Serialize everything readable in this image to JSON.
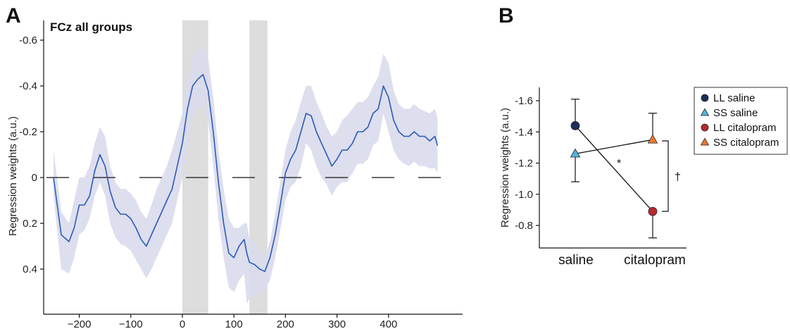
{
  "panels": {
    "A": {
      "letter": "A",
      "title": "FCz all groups",
      "ylabel": "Regression weights (a.u.)",
      "yticks": [
        "-0.6",
        "-0.4",
        "-0.2",
        "0",
        "0.2",
        "0.4"
      ],
      "xticks": [
        "−200",
        "−100",
        "0",
        "100",
        "200",
        "300",
        "400"
      ]
    },
    "B": {
      "letter": "B",
      "ylabel": "Regression weights (a.u.)",
      "yticks": [
        "-1.6",
        "-1.4",
        "-1.2",
        "-1.0",
        "-0.8"
      ],
      "categories": [
        "saline",
        "citalopram"
      ],
      "significance": {
        "within": "*",
        "between": "†"
      }
    }
  },
  "colors": {
    "line": "#2a5bb5",
    "band": "#d9daec",
    "shade": "#dcdddc",
    "ll_saline": "#1c2e57",
    "ss_saline": "#4fb3df",
    "ll_citalopram": "#b52a2f",
    "ss_citalopram": "#ec7a2e"
  },
  "chart_data": [
    {
      "type": "line",
      "title": "FCz all groups",
      "ylabel": "Regression weights (a.u.)",
      "xlabel": "",
      "xlim": [
        -250,
        495
      ],
      "ylim": [
        0.6,
        -0.6
      ],
      "y_axis_inverted": true,
      "grid": false,
      "zero_line": "dashed",
      "shaded_windows": [
        [
          0,
          50
        ],
        [
          130,
          165
        ]
      ],
      "series": [
        {
          "x": [
            -250,
            -235,
            -220,
            -210,
            -200,
            -190,
            -180,
            -170,
            -160,
            -150,
            -140,
            -130,
            -120,
            -110,
            -100,
            -90,
            -80,
            -70,
            -60,
            -50,
            -40,
            -30,
            -20,
            -10,
            0,
            10,
            20,
            30,
            40,
            50,
            60,
            70,
            80,
            90,
            100,
            110,
            120,
            125,
            130,
            140,
            150,
            160,
            170,
            180,
            190,
            200,
            210,
            220,
            230,
            240,
            250,
            260,
            270,
            280,
            290,
            300,
            310,
            320,
            330,
            340,
            350,
            360,
            370,
            380,
            390,
            400,
            410,
            420,
            430,
            440,
            450,
            460,
            470,
            480,
            490,
            495
          ],
          "y": [
            0,
            0.25,
            0.28,
            0.22,
            0.12,
            0.12,
            0.08,
            -0.03,
            -0.1,
            -0.05,
            0.06,
            0.13,
            0.16,
            0.16,
            0.18,
            0.22,
            0.27,
            0.3,
            0.25,
            0.2,
            0.15,
            0.1,
            0.05,
            -0.05,
            -0.15,
            -0.3,
            -0.4,
            -0.43,
            -0.45,
            -0.38,
            -0.2,
            0.02,
            0.2,
            0.33,
            0.35,
            0.3,
            0.27,
            0.33,
            0.37,
            0.38,
            0.4,
            0.41,
            0.35,
            0.25,
            0.12,
            -0.02,
            -0.08,
            -0.12,
            -0.2,
            -0.28,
            -0.27,
            -0.2,
            -0.15,
            -0.1,
            -0.05,
            -0.08,
            -0.12,
            -0.12,
            -0.15,
            -0.2,
            -0.2,
            -0.22,
            -0.28,
            -0.3,
            -0.4,
            -0.35,
            -0.25,
            -0.2,
            -0.18,
            -0.18,
            -0.2,
            -0.18,
            -0.18,
            -0.16,
            -0.18,
            -0.14
          ],
          "ci_lower": [
            -0.12,
            0.15,
            0.2,
            0.1,
            0,
            0,
            -0.05,
            -0.15,
            -0.22,
            -0.18,
            -0.05,
            0.02,
            0.05,
            0.05,
            0.07,
            0.1,
            0.15,
            0.18,
            0.12,
            0.05,
            0,
            -0.05,
            -0.12,
            -0.2,
            -0.28,
            -0.42,
            -0.52,
            -0.55,
            -0.57,
            -0.52,
            -0.35,
            -0.12,
            0.05,
            0.18,
            0.22,
            0.22,
            0.2,
            0.2,
            0.27,
            0.28,
            0.32,
            0.35,
            0.28,
            0.16,
            0.02,
            -0.12,
            -0.2,
            -0.25,
            -0.33,
            -0.4,
            -0.4,
            -0.33,
            -0.28,
            -0.22,
            -0.18,
            -0.2,
            -0.25,
            -0.27,
            -0.3,
            -0.33,
            -0.33,
            -0.35,
            -0.4,
            -0.44,
            -0.54,
            -0.5,
            -0.38,
            -0.32,
            -0.3,
            -0.3,
            -0.32,
            -0.3,
            -0.29,
            -0.28,
            -0.3,
            -0.26
          ],
          "ci_upper": [
            0.08,
            0.4,
            0.42,
            0.35,
            0.25,
            0.23,
            0.18,
            0.08,
            0.02,
            0.08,
            0.2,
            0.26,
            0.29,
            0.3,
            0.32,
            0.36,
            0.4,
            0.44,
            0.4,
            0.35,
            0.3,
            0.25,
            0.2,
            0.1,
            0,
            -0.15,
            -0.26,
            -0.3,
            -0.32,
            -0.25,
            -0.05,
            0.18,
            0.35,
            0.48,
            0.5,
            0.45,
            0.42,
            0.55,
            0.53,
            0.52,
            0.5,
            0.49,
            0.45,
            0.35,
            0.23,
            0.1,
            0.04,
            0.02,
            -0.05,
            -0.15,
            -0.12,
            -0.05,
            0,
            0.03,
            0.08,
            0.04,
            0.02,
            0.02,
            -0.02,
            -0.06,
            -0.06,
            -0.08,
            -0.14,
            -0.16,
            -0.28,
            -0.2,
            -0.12,
            -0.08,
            -0.06,
            -0.05,
            -0.07,
            -0.05,
            -0.05,
            -0.04,
            -0.04,
            -0.02
          ]
        }
      ]
    },
    {
      "type": "scatter",
      "ylabel": "Regression weights (a.u.)",
      "categories": [
        "saline",
        "citalopram"
      ],
      "ylim": [
        -0.7,
        -1.7
      ],
      "y_axis_inverted": true,
      "grid": false,
      "legend": "right",
      "series": [
        {
          "name": "LL saline",
          "marker": "circle",
          "color": "#1c2e57",
          "x": "saline",
          "value": -1.44,
          "error": 0.17
        },
        {
          "name": "SS saline",
          "marker": "triangle",
          "color": "#4fb3df",
          "x": "saline",
          "value": -1.26,
          "error": 0.18
        },
        {
          "name": "LL citalopram",
          "marker": "circle",
          "color": "#b52a2f",
          "x": "citalopram",
          "value": -0.89,
          "error": 0.17
        },
        {
          "name": "SS citalopram",
          "marker": "triangle",
          "color": "#ec7a2e",
          "x": "citalopram",
          "value": -1.35,
          "error": 0.17
        }
      ],
      "connectors": [
        [
          "LL saline",
          "LL citalopram"
        ],
        [
          "SS saline",
          "SS citalopram"
        ]
      ],
      "annotations": [
        {
          "text": "*",
          "on": "LL saline → LL citalopram"
        },
        {
          "text": "†",
          "on": "LL citalopram vs SS citalopram"
        }
      ]
    }
  ]
}
